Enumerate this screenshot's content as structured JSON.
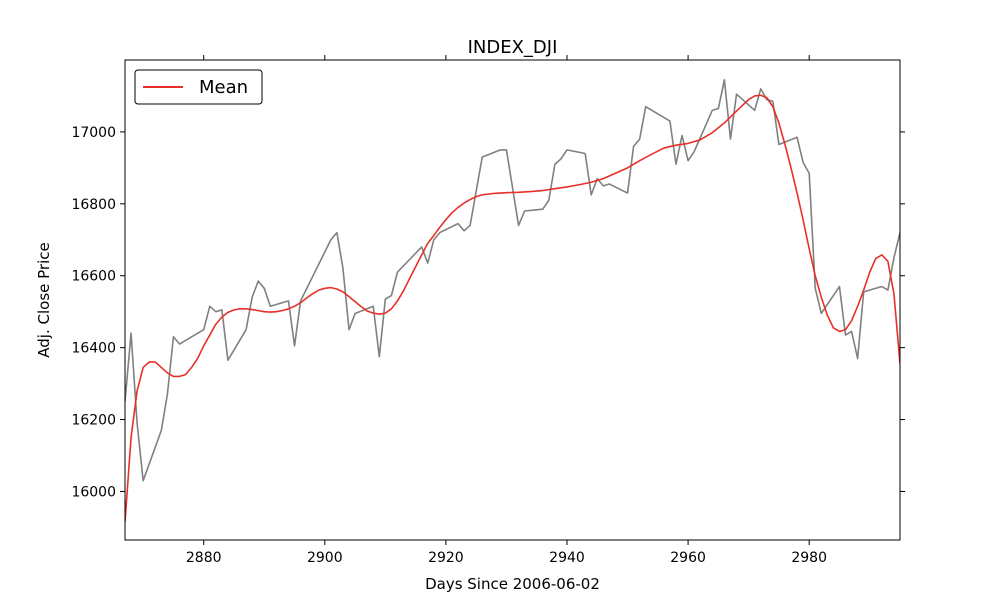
{
  "chart_data": {
    "type": "line",
    "title": "INDEX_DJI",
    "xlabel": "Days Since 2006-06-02",
    "ylabel": "Adj. Close Price",
    "xlim": [
      2867,
      2995
    ],
    "ylim": [
      15865,
      17200
    ],
    "xticks": [
      2880,
      2900,
      2920,
      2940,
      2960,
      2980
    ],
    "yticks": [
      16000,
      16200,
      16400,
      16600,
      16800,
      17000
    ],
    "grid": false,
    "legend": {
      "placement": "top-left",
      "entries": [
        "Mean"
      ]
    },
    "series": [
      {
        "name": "",
        "color": "#808080",
        "points": [
          [
            2867,
            16250
          ],
          [
            2868,
            16440
          ],
          [
            2869,
            16190
          ],
          [
            2870,
            16030
          ],
          [
            2873,
            16170
          ],
          [
            2874,
            16270
          ],
          [
            2875,
            16430
          ],
          [
            2876,
            16410
          ],
          [
            2880,
            16450
          ],
          [
            2881,
            16515
          ],
          [
            2882,
            16500
          ],
          [
            2883,
            16505
          ],
          [
            2884,
            16365
          ],
          [
            2887,
            16450
          ],
          [
            2888,
            16540
          ],
          [
            2889,
            16585
          ],
          [
            2890,
            16565
          ],
          [
            2891,
            16515
          ],
          [
            2894,
            16530
          ],
          [
            2895,
            16405
          ],
          [
            2896,
            16530
          ],
          [
            2901,
            16700
          ],
          [
            2902,
            16720
          ],
          [
            2903,
            16620
          ],
          [
            2904,
            16450
          ],
          [
            2905,
            16495
          ],
          [
            2908,
            16515
          ],
          [
            2909,
            16375
          ],
          [
            2910,
            16535
          ],
          [
            2911,
            16545
          ],
          [
            2912,
            16610
          ],
          [
            2916,
            16680
          ],
          [
            2917,
            16635
          ],
          [
            2918,
            16700
          ],
          [
            2919,
            16720
          ],
          [
            2922,
            16745
          ],
          [
            2923,
            16725
          ],
          [
            2924,
            16740
          ],
          [
            2926,
            16930
          ],
          [
            2929,
            16950
          ],
          [
            2930,
            16950
          ],
          [
            2932,
            16740
          ],
          [
            2933,
            16780
          ],
          [
            2936,
            16785
          ],
          [
            2937,
            16810
          ],
          [
            2938,
            16910
          ],
          [
            2939,
            16925
          ],
          [
            2940,
            16950
          ],
          [
            2943,
            16940
          ],
          [
            2944,
            16825
          ],
          [
            2945,
            16870
          ],
          [
            2946,
            16850
          ],
          [
            2947,
            16855
          ],
          [
            2950,
            16830
          ],
          [
            2951,
            16960
          ],
          [
            2952,
            16980
          ],
          [
            2953,
            17070
          ],
          [
            2957,
            17030
          ],
          [
            2958,
            16910
          ],
          [
            2959,
            16990
          ],
          [
            2960,
            16920
          ],
          [
            2961,
            16945
          ],
          [
            2964,
            17060
          ],
          [
            2965,
            17065
          ],
          [
            2966,
            17145
          ],
          [
            2967,
            16980
          ],
          [
            2968,
            17105
          ],
          [
            2971,
            17060
          ],
          [
            2972,
            17120
          ],
          [
            2973,
            17090
          ],
          [
            2974,
            17085
          ],
          [
            2975,
            16965
          ],
          [
            2978,
            16985
          ],
          [
            2979,
            16915
          ],
          [
            2980,
            16885
          ],
          [
            2981,
            16565
          ],
          [
            2982,
            16495
          ],
          [
            2985,
            16570
          ],
          [
            2986,
            16435
          ],
          [
            2987,
            16445
          ],
          [
            2988,
            16370
          ],
          [
            2989,
            16555
          ],
          [
            2992,
            16570
          ],
          [
            2993,
            16560
          ],
          [
            2994,
            16650
          ],
          [
            2995,
            16720
          ]
        ]
      },
      {
        "name": "Mean",
        "color": "#e8302a",
        "points": [
          [
            2867,
            15915
          ],
          [
            2868,
            16150
          ],
          [
            2869,
            16280
          ],
          [
            2870,
            16345
          ],
          [
            2871,
            16360
          ],
          [
            2872,
            16360
          ],
          [
            2873,
            16345
          ],
          [
            2874,
            16330
          ],
          [
            2875,
            16320
          ],
          [
            2876,
            16320
          ],
          [
            2877,
            16325
          ],
          [
            2878,
            16345
          ],
          [
            2879,
            16370
          ],
          [
            2880,
            16405
          ],
          [
            2881,
            16435
          ],
          [
            2882,
            16465
          ],
          [
            2883,
            16485
          ],
          [
            2884,
            16498
          ],
          [
            2885,
            16505
          ],
          [
            2886,
            16508
          ],
          [
            2887,
            16508
          ],
          [
            2888,
            16506
          ],
          [
            2889,
            16503
          ],
          [
            2890,
            16500
          ],
          [
            2891,
            16499
          ],
          [
            2892,
            16500
          ],
          [
            2893,
            16503
          ],
          [
            2894,
            16508
          ],
          [
            2895,
            16515
          ],
          [
            2896,
            16525
          ],
          [
            2897,
            16538
          ],
          [
            2898,
            16550
          ],
          [
            2899,
            16560
          ],
          [
            2900,
            16565
          ],
          [
            2901,
            16567
          ],
          [
            2902,
            16563
          ],
          [
            2903,
            16555
          ],
          [
            2904,
            16542
          ],
          [
            2905,
            16528
          ],
          [
            2906,
            16514
          ],
          [
            2907,
            16502
          ],
          [
            2908,
            16496
          ],
          [
            2909,
            16493
          ],
          [
            2910,
            16496
          ],
          [
            2911,
            16508
          ],
          [
            2912,
            16530
          ],
          [
            2913,
            16558
          ],
          [
            2914,
            16592
          ],
          [
            2915,
            16625
          ],
          [
            2916,
            16658
          ],
          [
            2917,
            16690
          ],
          [
            2918,
            16712
          ],
          [
            2919,
            16735
          ],
          [
            2920,
            16756
          ],
          [
            2921,
            16775
          ],
          [
            2922,
            16790
          ],
          [
            2923,
            16802
          ],
          [
            2924,
            16812
          ],
          [
            2925,
            16820
          ],
          [
            2926,
            16825
          ],
          [
            2928,
            16829
          ],
          [
            2930,
            16831
          ],
          [
            2932,
            16832
          ],
          [
            2934,
            16834
          ],
          [
            2936,
            16837
          ],
          [
            2938,
            16842
          ],
          [
            2940,
            16847
          ],
          [
            2942,
            16853
          ],
          [
            2944,
            16860
          ],
          [
            2946,
            16870
          ],
          [
            2948,
            16885
          ],
          [
            2950,
            16900
          ],
          [
            2952,
            16920
          ],
          [
            2954,
            16938
          ],
          [
            2956,
            16955
          ],
          [
            2958,
            16963
          ],
          [
            2960,
            16968
          ],
          [
            2962,
            16978
          ],
          [
            2964,
            16998
          ],
          [
            2966,
            17025
          ],
          [
            2968,
            17058
          ],
          [
            2970,
            17090
          ],
          [
            2971,
            17100
          ],
          [
            2972,
            17102
          ],
          [
            2973,
            17095
          ],
          [
            2974,
            17070
          ],
          [
            2975,
            17025
          ],
          [
            2976,
            16965
          ],
          [
            2977,
            16900
          ],
          [
            2978,
            16830
          ],
          [
            2979,
            16755
          ],
          [
            2980,
            16675
          ],
          [
            2981,
            16600
          ],
          [
            2982,
            16540
          ],
          [
            2983,
            16490
          ],
          [
            2984,
            16455
          ],
          [
            2985,
            16445
          ],
          [
            2986,
            16450
          ],
          [
            2987,
            16475
          ],
          [
            2988,
            16515
          ],
          [
            2989,
            16560
          ],
          [
            2990,
            16610
          ],
          [
            2991,
            16648
          ],
          [
            2992,
            16658
          ],
          [
            2993,
            16640
          ],
          [
            2994,
            16550
          ],
          [
            2995,
            16355
          ]
        ]
      }
    ]
  }
}
